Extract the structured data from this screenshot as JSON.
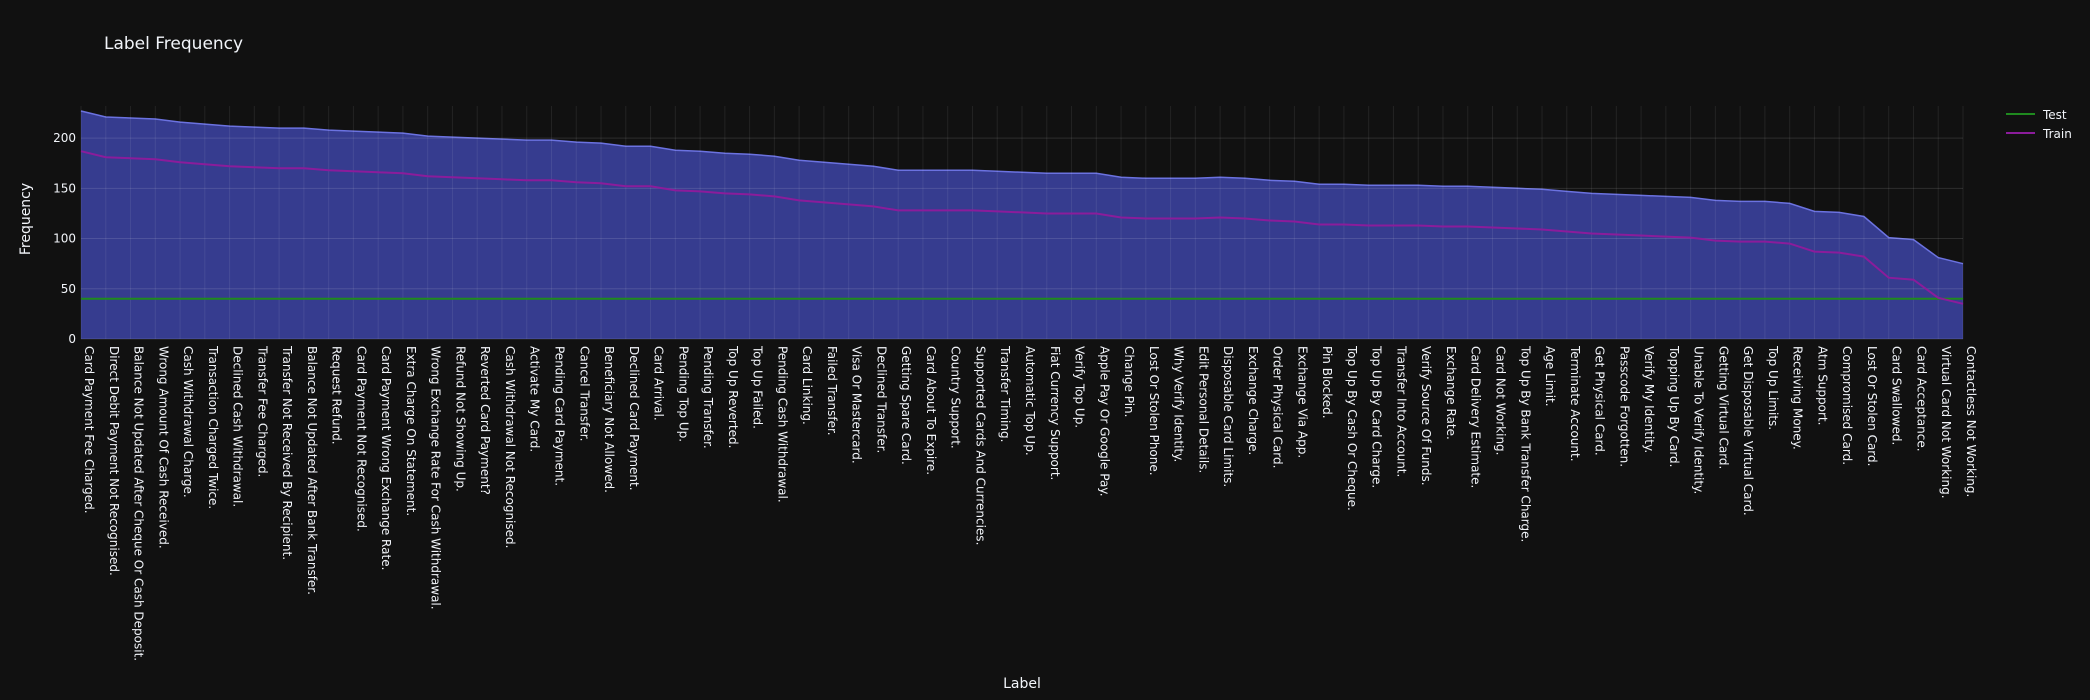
{
  "chart_data": {
    "type": "area",
    "title": "Label Frequency",
    "xlabel": "Label",
    "ylabel": "Frequency",
    "ylim": [
      0,
      228
    ],
    "yticks": [
      0,
      50,
      100,
      150,
      200
    ],
    "grid": true,
    "legend_position": "top-right",
    "categories": [
      "Card Payment Fee Charged.",
      "Direct Debit Payment Not Recognised.",
      "Balance Not Updated After Cheque Or Cash Deposit.",
      "Wrong Amount Of Cash Received.",
      "Cash Withdrawal Charge.",
      "Transaction Charged Twice.",
      "Declined Cash Withdrawal.",
      "Transfer Fee Charged.",
      "Transfer Not Received By Recipient.",
      "Balance Not Updated After Bank Transfer.",
      "Request Refund.",
      "Card Payment Not Recognised.",
      "Card Payment Wrong Exchange Rate.",
      "Extra Charge On Statement.",
      "Wrong Exchange Rate For Cash Withdrawal.",
      "Refund Not Showing Up.",
      "Reverted Card Payment?",
      "Cash Withdrawal Not Recognised.",
      "Activate My Card.",
      "Pending Card Payment.",
      "Cancel Transfer.",
      "Beneficiary Not Allowed.",
      "Declined Card Payment.",
      "Card Arrival.",
      "Pending Top Up.",
      "Pending Transfer.",
      "Top Up Reverted.",
      "Top Up Failed.",
      "Pending Cash Withdrawal.",
      "Card Linking.",
      "Failed Transfer.",
      "Visa Or Mastercard.",
      "Declined Transfer.",
      "Getting Spare Card.",
      "Card About To Expire.",
      "Country Support.",
      "Supported Cards And Currencies.",
      "Transfer Timing.",
      "Automatic Top Up.",
      "Fiat Currency Support.",
      "Verify Top Up.",
      "Apple Pay Or Google Pay.",
      "Change Pin.",
      "Lost Or Stolen Phone.",
      "Why Verify Identity.",
      "Edit Personal Details.",
      "Disposable Card Limits.",
      "Exchange Charge.",
      "Order Physical Card.",
      "Exchange Via App.",
      "Pin Blocked.",
      "Top Up By Cash Or Cheque.",
      "Top Up By Card Charge.",
      "Transfer Into Account.",
      "Verify Source Of Funds.",
      "Exchange Rate.",
      "Card Delivery Estimate.",
      "Card Not Working.",
      "Top Up By Bank Transfer Charge.",
      "Age Limit.",
      "Terminate Account.",
      "Get Physical Card.",
      "Passcode Forgotten.",
      "Verify My Identity.",
      "Topping Up By Card.",
      "Unable To Verify Identity.",
      "Getting Virtual Card.",
      "Get Disposable Virtual Card.",
      "Top Up Limits.",
      "Receiving Money.",
      "Atm Support.",
      "Compromised Card.",
      "Lost Or Stolen Card.",
      "Card Swallowed.",
      "Card Acceptance.",
      "Virtual Card Not Working.",
      "Contactless Not Working."
    ],
    "series": [
      {
        "name": "Test",
        "color": "#1f8a1f",
        "values": [
          40,
          40,
          40,
          40,
          40,
          40,
          40,
          40,
          40,
          40,
          40,
          40,
          40,
          40,
          40,
          40,
          40,
          40,
          40,
          40,
          40,
          40,
          40,
          40,
          40,
          40,
          40,
          40,
          40,
          40,
          40,
          40,
          40,
          40,
          40,
          40,
          40,
          40,
          40,
          40,
          40,
          40,
          40,
          40,
          40,
          40,
          40,
          40,
          40,
          40,
          40,
          40,
          40,
          40,
          40,
          40,
          40,
          40,
          40,
          40,
          40,
          40,
          40,
          40,
          40,
          40,
          40,
          40,
          40,
          40,
          40,
          40,
          40,
          40,
          40,
          40,
          40
        ]
      },
      {
        "name": "Train",
        "color": "#8b1c9b",
        "values": [
          187,
          181,
          180,
          179,
          176,
          174,
          172,
          171,
          170,
          170,
          168,
          167,
          166,
          165,
          162,
          161,
          160,
          159,
          158,
          158,
          156,
          155,
          152,
          152,
          148,
          147,
          145,
          144,
          142,
          138,
          136,
          134,
          132,
          128,
          128,
          128,
          128,
          127,
          126,
          125,
          125,
          125,
          121,
          120,
          120,
          120,
          121,
          120,
          118,
          117,
          114,
          114,
          113,
          113,
          113,
          112,
          112,
          111,
          110,
          109,
          107,
          105,
          104,
          103,
          102,
          101,
          98,
          97,
          97,
          95,
          87,
          86,
          82,
          61,
          59,
          41,
          35
        ]
      }
    ],
    "area_fill": "#3d44a6",
    "area_line": "#6b72e0"
  }
}
